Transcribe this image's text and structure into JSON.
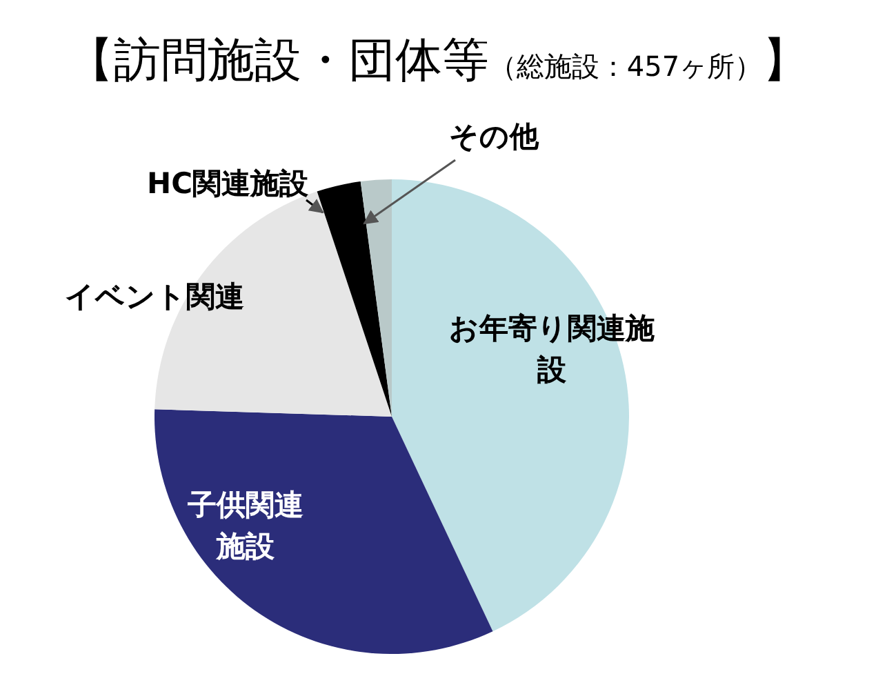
{
  "chart_data": {
    "type": "pie",
    "title": "【訪問施設・団体等（総施設：457ヶ所）】",
    "categories": [
      "お年寄り関連施設",
      "子供関連施設",
      "イベント関連",
      "HC関連施設",
      "その他"
    ],
    "values": [
      43,
      32.5,
      19.4,
      3,
      2.1
    ],
    "colors": [
      "#bfe1e6",
      "#2b2d7a",
      "#e6e6e6",
      "#000000",
      "#b9c9c9"
    ]
  }
}
